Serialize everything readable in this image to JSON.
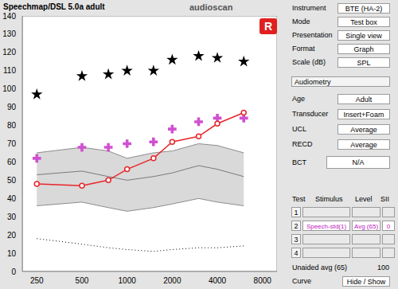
{
  "title": "Speechmap/DSL 5.0a adult",
  "logo": "audioscan",
  "badge": "R",
  "chart_data": {
    "type": "line",
    "x": [
      250,
      500,
      750,
      1000,
      1500,
      2000,
      3000,
      4000,
      6000
    ],
    "xlim": [
      200,
      10000
    ],
    "xticks": [
      250,
      500,
      1000,
      2000,
      4000,
      8000
    ],
    "ylim": [
      0,
      140
    ],
    "yticks": [
      0,
      10,
      20,
      30,
      40,
      50,
      60,
      70,
      80,
      90,
      100,
      110,
      120,
      130,
      140
    ],
    "log": "x",
    "grid": false,
    "series": [
      {
        "type": "band",
        "color": "#8c8c8c",
        "lower": [
          36,
          38,
          35,
          33,
          35,
          37,
          40,
          38,
          36
        ],
        "values": [
          65,
          68,
          66,
          62,
          65,
          66,
          70,
          69,
          65
        ]
      },
      {
        "type": "line",
        "color": "#7a7a7a",
        "marker": "none",
        "values": [
          53,
          55,
          52,
          50,
          52,
          54,
          58,
          56,
          52
        ]
      },
      {
        "type": "line",
        "color": "#000000",
        "marker": "none",
        "line_style": "dotted",
        "values": [
          18,
          15,
          13,
          12,
          11,
          12,
          13,
          13,
          14
        ]
      },
      {
        "type": "scatter",
        "color": "#000000",
        "marker": "star",
        "values": [
          97,
          107,
          108,
          110,
          110,
          116,
          118,
          117,
          115
        ]
      },
      {
        "type": "scatter",
        "color": "#d050d0",
        "marker": "cross",
        "values": [
          62,
          68,
          68,
          70,
          71,
          78,
          82,
          84,
          84
        ]
      },
      {
        "type": "line",
        "color": "#e8262b",
        "marker": "circle",
        "values": [
          48,
          47,
          50,
          56,
          62,
          71,
          74,
          81,
          87
        ]
      }
    ]
  },
  "panel": {
    "settings": [
      {
        "label": "Instrument",
        "value": "BTE (HA-2)"
      },
      {
        "label": "Mode",
        "value": "Test box"
      },
      {
        "label": "Presentation",
        "value": "Single view"
      },
      {
        "label": "Format",
        "value": "Graph"
      },
      {
        "label": "Scale (dB)",
        "value": "SPL"
      }
    ],
    "section": "Audiometry",
    "audiometry": [
      {
        "label": "Age",
        "value": "Adult"
      },
      {
        "label": "Transducer",
        "value": "Insert+Foam"
      },
      {
        "label": "UCL",
        "value": "Average"
      },
      {
        "label": "RECD",
        "value": "Average"
      }
    ],
    "bct": {
      "label": "BCT",
      "value": "N/A"
    },
    "tests": {
      "header": [
        "Test",
        "Stimulus",
        "Level",
        "SII"
      ],
      "rows": [
        {
          "test": "1"
        },
        {
          "test": "2",
          "stimulus": "Speech-std(1)",
          "level": "Avg (65)",
          "sii": "0"
        },
        {
          "test": "3"
        },
        {
          "test": "4"
        }
      ]
    },
    "unaided": {
      "label": "Unaided avg (65)",
      "value": "100"
    },
    "curve": {
      "label": "Curve",
      "value": "Hide / Show"
    }
  }
}
